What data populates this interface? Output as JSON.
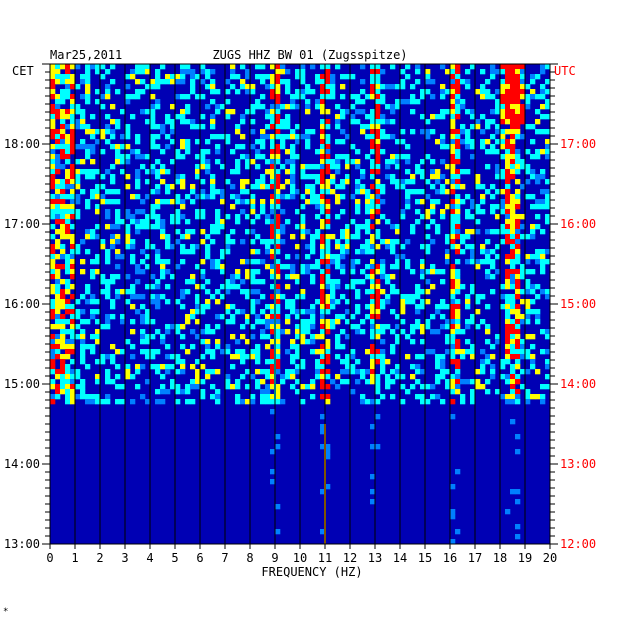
{
  "header": {
    "date": "Mar25,2011",
    "station": "ZUGS HHZ BW 01 (Zugsspitze)",
    "left_zone": "CET",
    "right_zone": "UTC"
  },
  "footer_mark": "*",
  "colors": {
    "background_plot": "#0000b4",
    "utc_labels": "#ff0000",
    "text": "#000000"
  },
  "chart_data": {
    "type": "heatmap",
    "title": "ZUGS HHZ BW 01 (Zugsspitze)",
    "xlabel": "FREQUENCY (HZ)",
    "ylabel": "",
    "x_ticks": [
      "0",
      "1",
      "2",
      "3",
      "4",
      "5",
      "6",
      "7",
      "8",
      "9",
      "10",
      "11",
      "12",
      "13",
      "14",
      "15",
      "16",
      "17",
      "18",
      "19",
      "20"
    ],
    "xlim": [
      0,
      20
    ],
    "y_ticks_cet": [
      "18:00",
      "17:00",
      "16:00",
      "15:00",
      "14:00",
      "13:00"
    ],
    "y_ticks_utc": [
      "17:00",
      "16:00",
      "15:00",
      "14:00",
      "13:00",
      "12:00"
    ],
    "ylim_cet": [
      "13:00",
      "19:00"
    ],
    "colormap": [
      "#000080",
      "#0000ff",
      "#0080ff",
      "#00ffff",
      "#ffff00",
      "#ff0000"
    ],
    "persistent_lines_hz": [
      9.0,
      11.0,
      13.0,
      16.2,
      18.5
    ],
    "grid": true
  }
}
